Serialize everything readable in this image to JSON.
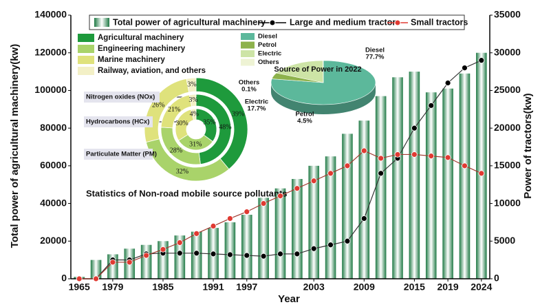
{
  "chart_data": [
    {
      "type": "combo",
      "x_label": "Year",
      "y_label": "Total power of agricultural machinery(kw)",
      "y2_label": "Power of tractors(kw)",
      "categories": [
        "1965",
        null,
        "1979",
        null,
        null,
        "1985",
        null,
        null,
        "1991",
        null,
        "1997",
        null,
        null,
        null,
        "2003",
        null,
        null,
        "2009",
        null,
        null,
        "2015",
        null,
        "2019",
        null,
        "2024"
      ],
      "series": [
        {
          "name": "Total power of agricultural machinery",
          "type": "bar",
          "color": "#1f7a45",
          "values": [
            1000,
            10000,
            13000,
            16000,
            18000,
            20000,
            23000,
            25000,
            27000,
            30000,
            34000,
            43000,
            48000,
            53000,
            60000,
            65000,
            77000,
            84000,
            97000,
            107000,
            110000,
            99000,
            101000,
            109000,
            120000
          ]
        },
        {
          "name": "Large and medium tractors",
          "type": "line",
          "axis": "y2",
          "color": "#000000",
          "values": [
            0,
            0,
            2500,
            2500,
            3300,
            3400,
            3400,
            3400,
            3300,
            3200,
            3100,
            3000,
            3300,
            3300,
            4000,
            4500,
            5000,
            8000,
            14000,
            16000,
            20000,
            23000,
            26000,
            28000,
            29000
          ]
        },
        {
          "name": "Small tractors",
          "type": "line",
          "axis": "y2",
          "color": "#e03a32",
          "values": [
            0,
            0,
            2200,
            2200,
            3100,
            3900,
            4800,
            6000,
            7000,
            8000,
            8900,
            10000,
            11000,
            12000,
            13000,
            14000,
            15000,
            17000,
            16000,
            16500,
            16500,
            16300,
            16100,
            15000,
            14000
          ]
        }
      ],
      "ylim": [
        0,
        140000
      ],
      "yticks": [
        0,
        20000,
        40000,
        60000,
        80000,
        100000,
        120000,
        140000
      ],
      "y2lim": [
        0,
        35000
      ],
      "y2ticks": [
        0,
        5000,
        10000,
        15000,
        20000,
        25000,
        30000,
        35000
      ]
    },
    {
      "type": "donut",
      "annotation": "Statistics of Non-road mobile source pollutants",
      "categories": [
        "Agricultural machinery",
        "Engineering machinery",
        "Marine machinery",
        "Railway, aviation, and others"
      ],
      "colors": [
        "#1e9a3c",
        "#a9d36a",
        "#dfe27c",
        "#f3f0c6"
      ],
      "rings": [
        {
          "name": "Nitrogen oxides (NOx)",
          "values": [
            39,
            32,
            26,
            3
          ],
          "value_labels": [
            "39%",
            "32%",
            "26%",
            "3%"
          ]
        },
        {
          "name": "Hydrocarbons  (HCx)",
          "values": [
            48,
            28,
            21,
            3
          ],
          "value_labels": [
            "48%",
            "28%",
            "21%",
            "3%"
          ]
        },
        {
          "name": "Particulate Matter (PM)",
          "values": [
            35,
            31,
            30,
            4
          ],
          "value_labels": [
            "35%",
            "31%",
            "30%",
            "4%"
          ]
        }
      ]
    },
    {
      "type": "pie",
      "title": "Source of Power in 2022",
      "categories": [
        "Diesel",
        "Petrol",
        "Electric",
        "Others"
      ],
      "colors": [
        "#5cb89b",
        "#8db24c",
        "#cde4a6",
        "#eef3d4"
      ],
      "values": [
        77.7,
        4.5,
        17.7,
        0.1
      ],
      "value_labels": [
        "77.7%",
        "4.5%",
        "17.7%",
        "0.1%"
      ]
    }
  ]
}
